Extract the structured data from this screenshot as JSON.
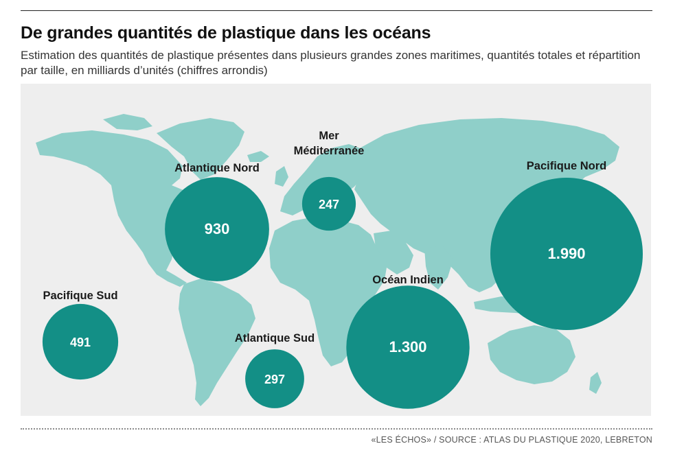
{
  "title": "De grandes quantités de plastique dans les océans",
  "subtitle": "Estimation des quantités de plastique présentes dans plusieurs grandes zones maritimes, quantités totales et répartition par taille, en milliards d’unités (chiffres arrondis)",
  "source": "«LES ÉCHOS» / SOURCE : ATLAS DU PLASTIQUE 2020, LEBRETON",
  "colors": {
    "land": "#8fcfc9",
    "bubble": "#138f86",
    "map_background": "#eeeeee"
  },
  "zones": [
    {
      "id": "atlantique-nord",
      "label_lines": [
        "Atlantique Nord"
      ],
      "value": "930",
      "value_num": 930
    },
    {
      "id": "mediterranee",
      "label_lines": [
        "Mer",
        "Méditerranée"
      ],
      "value": "247",
      "value_num": 247
    },
    {
      "id": "pacifique-nord",
      "label_lines": [
        "Pacifique Nord"
      ],
      "value": "1.990",
      "value_num": 1990
    },
    {
      "id": "ocean-indien",
      "label_lines": [
        "Océan Indien"
      ],
      "value": "1.300",
      "value_num": 1300
    },
    {
      "id": "pacifique-sud",
      "label_lines": [
        "Pacifique Sud"
      ],
      "value": "491",
      "value_num": 491
    },
    {
      "id": "atlantique-sud",
      "label_lines": [
        "Atlantique Sud"
      ],
      "value": "297",
      "value_num": 297
    }
  ]
}
